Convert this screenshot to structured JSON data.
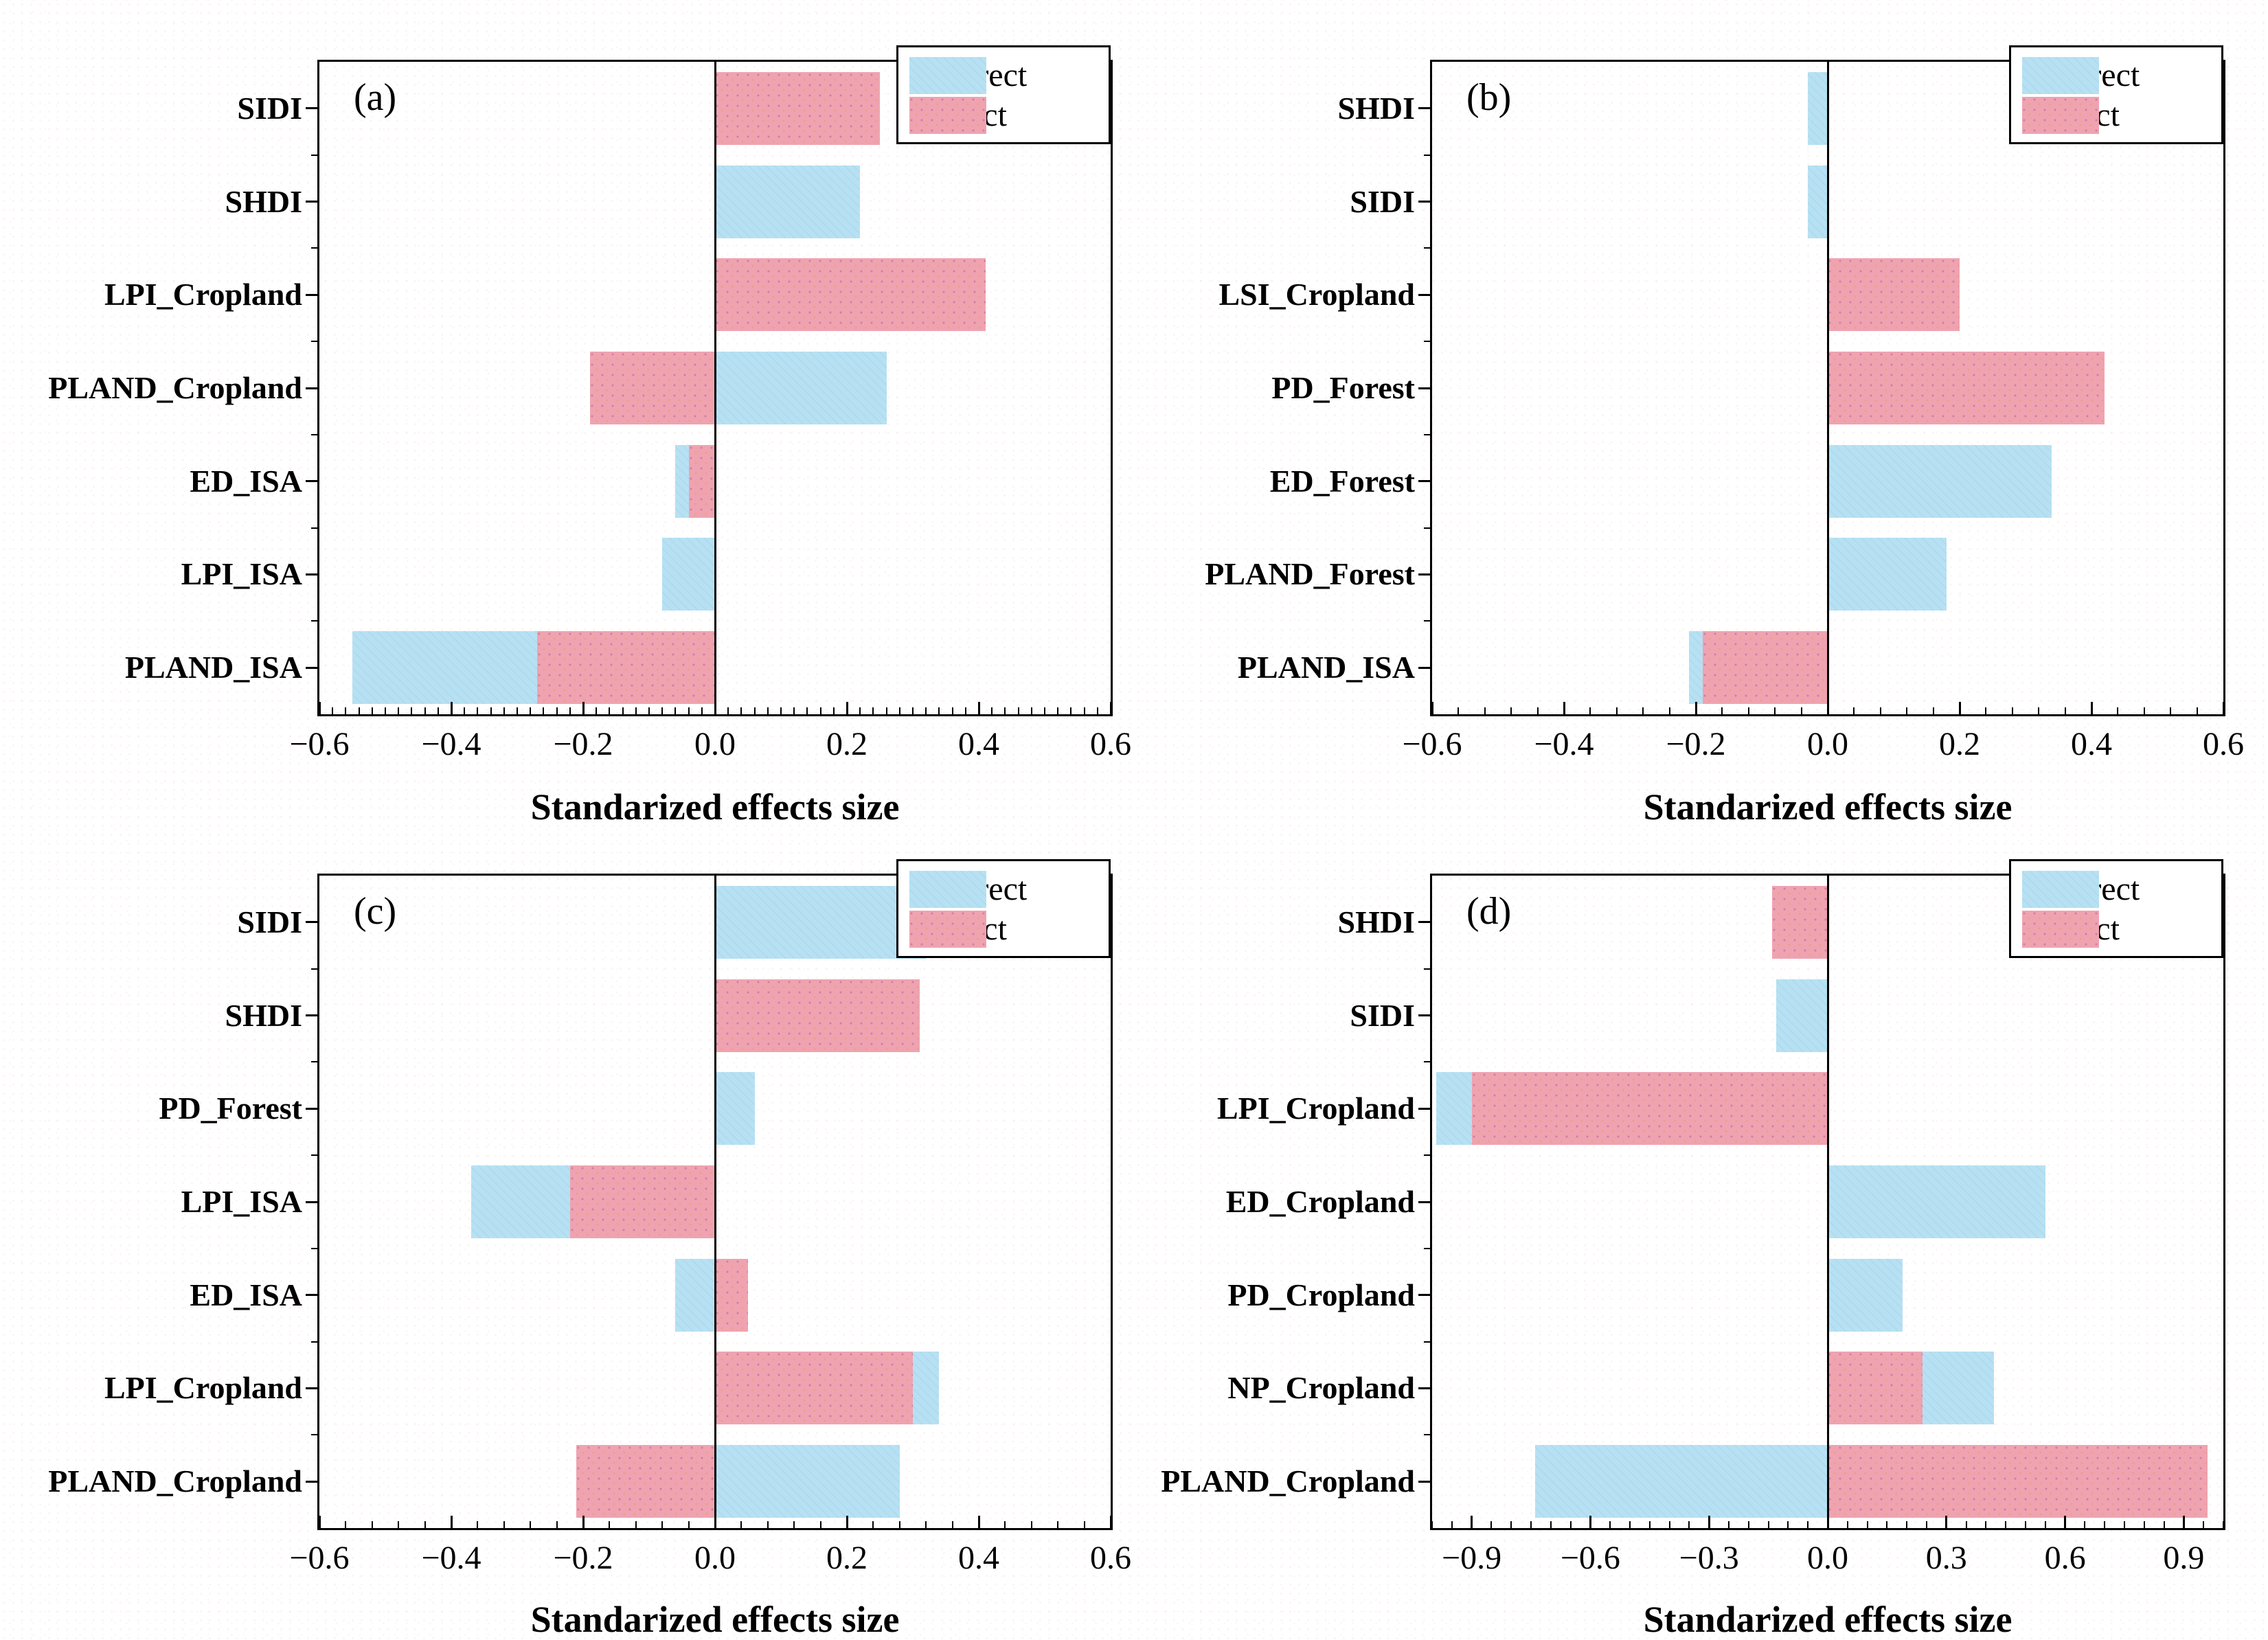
{
  "figure": {
    "xlabel": "Standarized effects size",
    "legend": {
      "indirect_label": "Indirect",
      "direct_label": "Direct"
    },
    "colors": {
      "indirect": "#B7E1F3",
      "direct": "#EFA3B0",
      "axis": "#000000",
      "background": "#FFFFFF"
    }
  },
  "chart_data": [
    {
      "panel_label": "(a)",
      "type": "bar",
      "orientation": "horizontal",
      "stacked": true,
      "xlabel": "Standarized effects size",
      "xlim": [
        -0.6,
        0.6
      ],
      "xticks": [
        -0.6,
        -0.4,
        -0.2,
        0.0,
        0.2,
        0.4,
        0.6
      ],
      "minor_tick_step": 0.02,
      "legend_position": "top-right",
      "categories": [
        "SIDI",
        "SHDI",
        "LPI_Cropland",
        "PLAND_Cropland",
        "ED_ISA",
        "LPI_ISA",
        "PLAND_ISA"
      ],
      "series": [
        {
          "name": "Indirect",
          "values": [
            0,
            0.22,
            0,
            0.26,
            -0.02,
            -0.08,
            -0.28
          ]
        },
        {
          "name": "Direct",
          "values": [
            0.25,
            0,
            0.41,
            -0.19,
            -0.04,
            0,
            -0.27
          ]
        }
      ]
    },
    {
      "panel_label": "(b)",
      "type": "bar",
      "orientation": "horizontal",
      "stacked": true,
      "xlabel": "Standarized effects size",
      "xlim": [
        -0.6,
        0.6
      ],
      "xticks": [
        -0.6,
        -0.4,
        -0.2,
        0.0,
        0.2,
        0.4,
        0.6
      ],
      "minor_tick_step": 0.04,
      "legend_position": "top-right",
      "categories": [
        "SHDI",
        "SIDI",
        "LSI_Cropland",
        "PD_Forest",
        "ED_Forest",
        "PLAND_Forest",
        "PLAND_ISA"
      ],
      "series": [
        {
          "name": "Indirect",
          "values": [
            -0.03,
            -0.03,
            0,
            0,
            0.34,
            0.18,
            -0.02
          ]
        },
        {
          "name": "Direct",
          "values": [
            0,
            0,
            0.2,
            0.42,
            0,
            0,
            -0.19
          ]
        }
      ]
    },
    {
      "panel_label": "(c)",
      "type": "bar",
      "orientation": "horizontal",
      "stacked": true,
      "xlabel": "Standarized effects size",
      "xlim": [
        -0.6,
        0.6
      ],
      "xticks": [
        -0.6,
        -0.4,
        -0.2,
        0.0,
        0.2,
        0.4,
        0.6
      ],
      "minor_tick_step": 0.04,
      "legend_position": "top-right",
      "categories": [
        "SIDI",
        "SHDI",
        "PD_Forest",
        "LPI_ISA",
        "ED_ISA",
        "LPI_Cropland",
        "PLAND_Cropland"
      ],
      "series": [
        {
          "name": "Indirect",
          "values": [
            0.32,
            0,
            0.06,
            -0.15,
            -0.06,
            0.04,
            0.28
          ]
        },
        {
          "name": "Direct",
          "values": [
            0,
            0.31,
            0,
            -0.22,
            0.05,
            0.3,
            -0.21
          ]
        }
      ]
    },
    {
      "panel_label": "(d)",
      "type": "bar",
      "orientation": "horizontal",
      "stacked": true,
      "xlabel": "Standarized effects size",
      "xlim": [
        -1.0,
        1.0
      ],
      "xticks": [
        -0.9,
        -0.6,
        -0.3,
        0.0,
        0.3,
        0.6,
        0.9
      ],
      "minor_tick_step": 0.05,
      "legend_position": "top-right",
      "categories": [
        "SHDI",
        "SIDI",
        "LPI_Cropland",
        "ED_Cropland",
        "PD_Cropland",
        "NP_Cropland",
        "PLAND_Cropland"
      ],
      "series": [
        {
          "name": "Indirect",
          "values": [
            0,
            -0.13,
            -0.09,
            0.55,
            0.19,
            0.18,
            -0.74
          ]
        },
        {
          "name": "Direct",
          "values": [
            -0.14,
            0,
            -0.9,
            0,
            0,
            0.24,
            0.96
          ]
        }
      ]
    }
  ]
}
